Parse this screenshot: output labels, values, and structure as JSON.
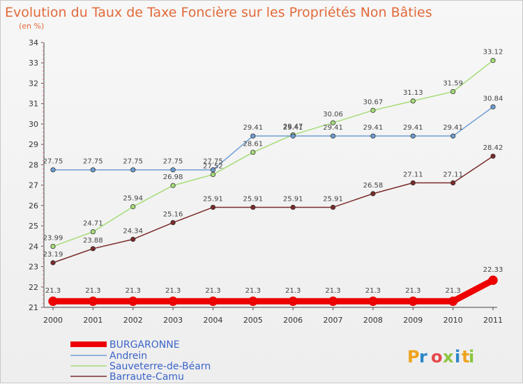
{
  "brand": {
    "letters": [
      "P",
      "r",
      "o",
      "x",
      "i",
      "t",
      "i"
    ],
    "colors": [
      "#f0a31d",
      "#2c87c8",
      "#e5474a",
      "#8cc63f",
      "#2c87c8",
      "#f0a31d",
      "#8cc63f"
    ]
  },
  "chart_data": {
    "type": "line",
    "title": "Evolution du Taux de Taxe Foncière sur les Propriétés Non Bâties",
    "subtitle": "(en %)",
    "x": [
      "2000",
      "2001",
      "2002",
      "2003",
      "2004",
      "2005",
      "2006",
      "2007",
      "2008",
      "2009",
      "2010",
      "2011"
    ],
    "ylim": [
      21,
      34
    ],
    "yticks": [
      "21",
      "22",
      "23",
      "24",
      "25",
      "26",
      "27",
      "28",
      "29",
      "30",
      "31",
      "32",
      "33",
      "34"
    ],
    "grid": false,
    "legend": "bottom-left",
    "series": [
      {
        "name": "BURGARONNE",
        "color": "#ee0000",
        "values": [
          21.3,
          21.3,
          21.3,
          21.3,
          21.3,
          21.3,
          21.3,
          21.3,
          21.3,
          21.3,
          21.3,
          22.33
        ],
        "labels": [
          "21.3",
          "21.3",
          "21.3",
          "21.3",
          "21.3",
          "21.3",
          "21.3",
          "21.3",
          "21.3",
          "21.3",
          "21.3",
          "22.33"
        ]
      },
      {
        "name": "Andrein",
        "color": "#6e9ed2",
        "values": [
          27.75,
          27.75,
          27.75,
          27.75,
          27.75,
          29.41,
          29.41,
          29.41,
          29.41,
          29.41,
          29.41,
          30.84
        ],
        "labels": [
          "27.75",
          "27.75",
          "27.75",
          "27.75",
          "27.75",
          "29.41",
          "29.41",
          "29.41",
          "29.41",
          "29.41",
          "29.41",
          "30.84"
        ]
      },
      {
        "name": "Sauveterre-de-Béarn",
        "color": "#a6dc7a",
        "values": [
          23.99,
          24.71,
          25.94,
          26.98,
          27.52,
          28.61,
          29.47,
          30.06,
          30.67,
          31.13,
          31.59,
          33.12
        ],
        "labels": [
          "23.99",
          "24.71",
          "25.94",
          "26.98",
          "27.52",
          "28.61",
          "29.47",
          "30.06",
          "30.67",
          "31.13",
          "31.59",
          "33.12"
        ]
      },
      {
        "name": "Barraute-Camu",
        "color": "#7a2a2a",
        "values": [
          23.19,
          23.88,
          24.34,
          25.16,
          25.91,
          25.91,
          25.91,
          25.91,
          26.58,
          27.11,
          27.11,
          28.42
        ],
        "labels": [
          "23.19",
          "23.88",
          "24.34",
          "25.16",
          "25.91",
          "25.91",
          "25.91",
          "25.91",
          "26.58",
          "27.11",
          "27.11",
          "28.42"
        ]
      }
    ]
  }
}
